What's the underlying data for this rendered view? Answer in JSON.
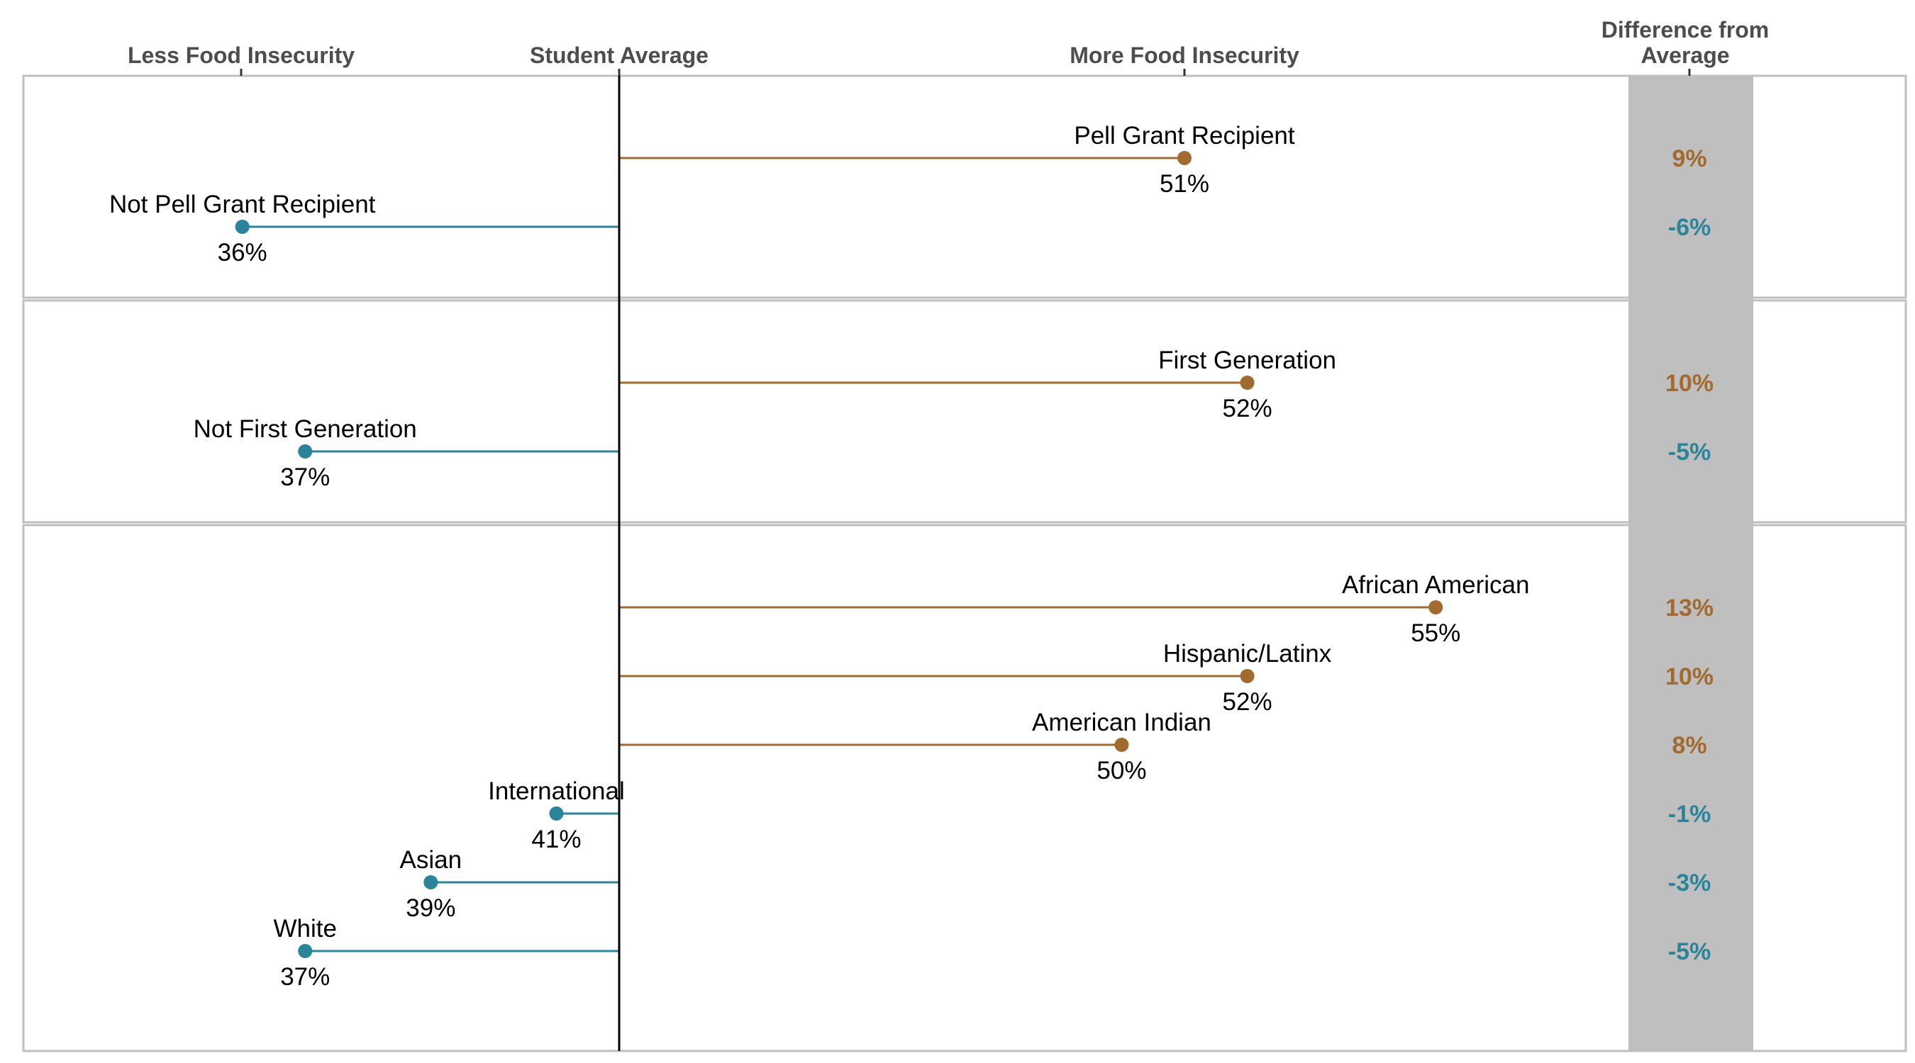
{
  "chart_data": {
    "type": "lollipop",
    "baseline_label": "Student Average",
    "baseline_value": 42,
    "header_left": "Less Food Insecurity",
    "header_right": "More Food Insecurity",
    "header_diff_line1": "Difference from",
    "header_diff_line2": "Average",
    "x_range": [
      30,
      60
    ],
    "colors": {
      "above": "#a26a2f",
      "below": "#2b849a",
      "diff_column": "#bfbfbf",
      "panel_border": "#bfbfbf"
    },
    "panels": [
      {
        "items": [
          {
            "label": "Pell Grant Recipient",
            "value": 51,
            "value_label": "51%",
            "diff_label": "9%",
            "direction": "above"
          },
          {
            "label": "Not Pell Grant Recipient",
            "value": 36,
            "value_label": "36%",
            "diff_label": "-6%",
            "direction": "below"
          }
        ]
      },
      {
        "items": [
          {
            "label": "First Generation",
            "value": 52,
            "value_label": "52%",
            "diff_label": "10%",
            "direction": "above"
          },
          {
            "label": "Not First Generation",
            "value": 37,
            "value_label": "37%",
            "diff_label": "-5%",
            "direction": "below"
          }
        ]
      },
      {
        "items": [
          {
            "label": "African American",
            "value": 55,
            "value_label": "55%",
            "diff_label": "13%",
            "direction": "above"
          },
          {
            "label": "Hispanic/Latinx",
            "value": 52,
            "value_label": "52%",
            "diff_label": "10%",
            "direction": "above"
          },
          {
            "label": "American Indian",
            "value": 50,
            "value_label": "50%",
            "diff_label": "8%",
            "direction": "above"
          },
          {
            "label": "International",
            "value": 41,
            "value_label": "41%",
            "diff_label": "-1%",
            "direction": "below"
          },
          {
            "label": "Asian",
            "value": 39,
            "value_label": "39%",
            "diff_label": "-3%",
            "direction": "below"
          },
          {
            "label": "White",
            "value": 37,
            "value_label": "37%",
            "diff_label": "-5%",
            "direction": "below"
          }
        ]
      }
    ]
  }
}
